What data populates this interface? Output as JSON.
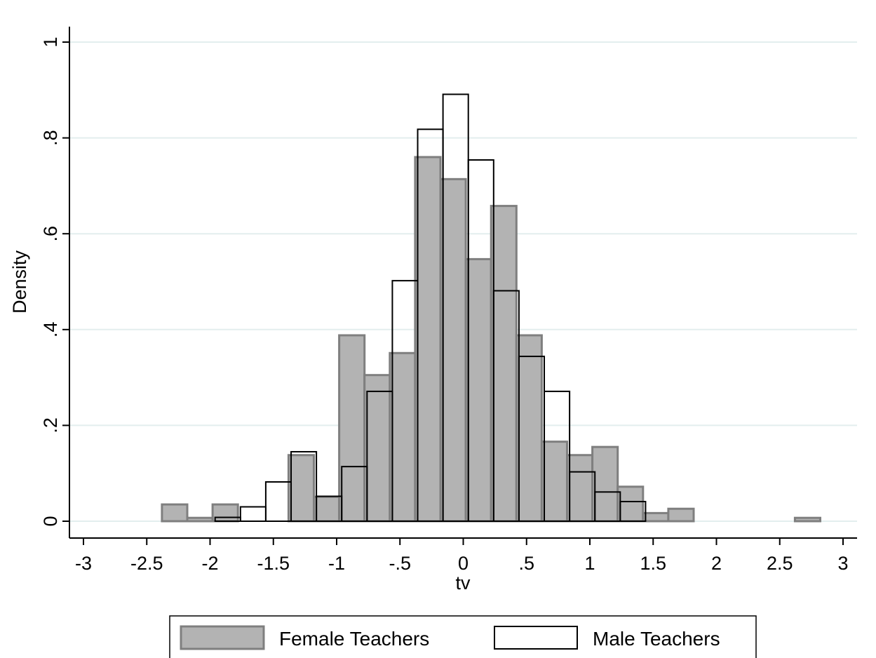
{
  "chart_data": {
    "type": "bar",
    "xlabel": "tv",
    "ylabel": "Density",
    "xlim": [
      -3,
      3
    ],
    "ylim": [
      0,
      1
    ],
    "x_ticks": [
      "-3",
      "-2.5",
      "-2",
      "-1.5",
      "-1",
      "-.5",
      "0",
      ".5",
      "1",
      "1.5",
      "2",
      "2.5",
      "3"
    ],
    "y_ticks": [
      "0",
      ".2",
      ".4",
      ".6",
      ".8",
      "1"
    ],
    "grid": true,
    "legend_position": "bottom",
    "series": [
      {
        "name": "Female Teachers",
        "fill": "#b3b3b3",
        "stroke": "#7f7f7f",
        "bins": [
          {
            "x0": -2.38,
            "x1": -2.18,
            "y": 0.035
          },
          {
            "x0": -2.18,
            "x1": -1.98,
            "y": 0.007
          },
          {
            "x0": -1.98,
            "x1": -1.78,
            "y": 0.035
          },
          {
            "x0": -1.38,
            "x1": -1.18,
            "y": 0.138
          },
          {
            "x0": -1.18,
            "x1": -0.98,
            "y": 0.051
          },
          {
            "x0": -0.98,
            "x1": -0.78,
            "y": 0.388
          },
          {
            "x0": -0.78,
            "x1": -0.58,
            "y": 0.305
          },
          {
            "x0": -0.58,
            "x1": -0.38,
            "y": 0.351
          },
          {
            "x0": -0.38,
            "x1": -0.18,
            "y": 0.76
          },
          {
            "x0": -0.18,
            "x1": 0.02,
            "y": 0.714
          },
          {
            "x0": 0.02,
            "x1": 0.22,
            "y": 0.547
          },
          {
            "x0": 0.22,
            "x1": 0.42,
            "y": 0.658
          },
          {
            "x0": 0.42,
            "x1": 0.62,
            "y": 0.388
          },
          {
            "x0": 0.62,
            "x1": 0.82,
            "y": 0.166
          },
          {
            "x0": 0.82,
            "x1": 1.02,
            "y": 0.138
          },
          {
            "x0": 1.02,
            "x1": 1.22,
            "y": 0.155
          },
          {
            "x0": 1.22,
            "x1": 1.42,
            "y": 0.072
          },
          {
            "x0": 1.42,
            "x1": 1.62,
            "y": 0.017
          },
          {
            "x0": 1.62,
            "x1": 1.82,
            "y": 0.026
          },
          {
            "x0": 2.62,
            "x1": 2.82,
            "y": 0.007
          }
        ]
      },
      {
        "name": "Male Teachers",
        "fill": "none",
        "stroke": "#000000",
        "bins": [
          {
            "x0": -1.96,
            "x1": -1.76,
            "y": 0.008
          },
          {
            "x0": -1.76,
            "x1": -1.56,
            "y": 0.03
          },
          {
            "x0": -1.56,
            "x1": -1.36,
            "y": 0.082
          },
          {
            "x0": -1.36,
            "x1": -1.16,
            "y": 0.145
          },
          {
            "x0": -1.16,
            "x1": -0.96,
            "y": 0.052
          },
          {
            "x0": -0.96,
            "x1": -0.76,
            "y": 0.114
          },
          {
            "x0": -0.76,
            "x1": -0.56,
            "y": 0.271
          },
          {
            "x0": -0.56,
            "x1": -0.36,
            "y": 0.502
          },
          {
            "x0": -0.36,
            "x1": -0.16,
            "y": 0.818
          },
          {
            "x0": -0.16,
            "x1": 0.04,
            "y": 0.891
          },
          {
            "x0": 0.04,
            "x1": 0.24,
            "y": 0.754
          },
          {
            "x0": 0.24,
            "x1": 0.44,
            "y": 0.481
          },
          {
            "x0": 0.44,
            "x1": 0.64,
            "y": 0.344
          },
          {
            "x0": 0.64,
            "x1": 0.84,
            "y": 0.271
          },
          {
            "x0": 0.84,
            "x1": 1.04,
            "y": 0.103
          },
          {
            "x0": 1.04,
            "x1": 1.24,
            "y": 0.061
          },
          {
            "x0": 1.24,
            "x1": 1.44,
            "y": 0.041
          }
        ]
      }
    ]
  }
}
